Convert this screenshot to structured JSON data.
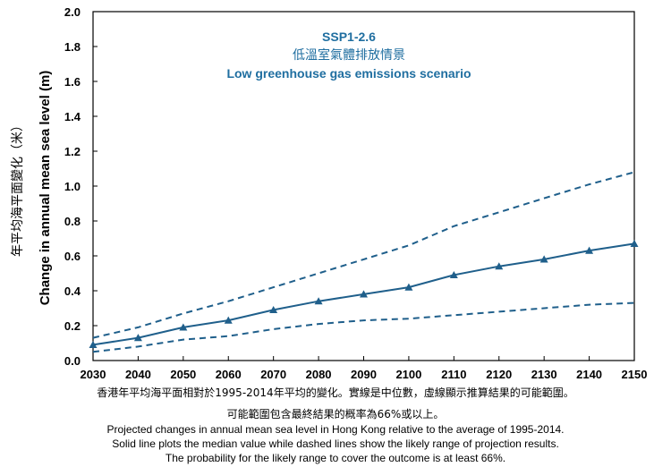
{
  "chart_data": {
    "type": "line",
    "title_lines": [
      "SSP1-2.6",
      "低溫室氣體排放情景",
      "Low greenhouse gas emissions scenario"
    ],
    "ylabel_en": "Change in annual mean sea level (m)",
    "ylabel_zh": "年平均海平面變化（米）",
    "xlabel": "",
    "x": [
      2030,
      2040,
      2050,
      2060,
      2070,
      2080,
      2090,
      2100,
      2110,
      2120,
      2130,
      2140,
      2150
    ],
    "xlim": [
      2030,
      2150
    ],
    "ylim": [
      0,
      2.0
    ],
    "yticks": [
      0.0,
      0.2,
      0.4,
      0.6,
      0.8,
      1.0,
      1.2,
      1.4,
      1.6,
      1.8,
      2.0
    ],
    "ytick_labels": [
      "0.0",
      "0.2",
      "0.4",
      "0.6",
      "0.8",
      "1.0",
      "1.2",
      "1.4",
      "1.6",
      "1.8",
      "2.0"
    ],
    "grid": false,
    "series": [
      {
        "role": "median",
        "style": "solid",
        "marker": "triangle",
        "color": "#1f5f8b",
        "values": [
          0.09,
          0.13,
          0.19,
          0.23,
          0.29,
          0.34,
          0.38,
          0.42,
          0.49,
          0.54,
          0.58,
          0.63,
          0.67
        ]
      },
      {
        "role": "upper",
        "style": "dashed",
        "marker": "none",
        "color": "#1f5f8b",
        "values": [
          0.13,
          0.19,
          0.27,
          0.34,
          0.42,
          0.5,
          0.58,
          0.66,
          0.77,
          0.85,
          0.93,
          1.01,
          1.08
        ]
      },
      {
        "role": "lower",
        "style": "dashed",
        "marker": "none",
        "color": "#1f5f8b",
        "values": [
          0.05,
          0.08,
          0.12,
          0.14,
          0.18,
          0.21,
          0.23,
          0.24,
          0.26,
          0.28,
          0.3,
          0.32,
          0.33
        ]
      }
    ]
  },
  "captions": {
    "zh_line1": "香港年平均海平面相對於1995-2014年平均的變化。實線是中位數，虛線顯示推算結果的可能範圍。",
    "zh_line2": "可能範圍包含最終結果的概率為66%或以上。",
    "en_line1": "Projected changes in annual  mean sea level in Hong Kong relative to the average of 1995-2014.",
    "en_line2": "Solid line plots the median value while dashed lines show the likely range of projection results.",
    "en_line3": "The probability for the likely range to cover the outcome is at least 66%."
  }
}
